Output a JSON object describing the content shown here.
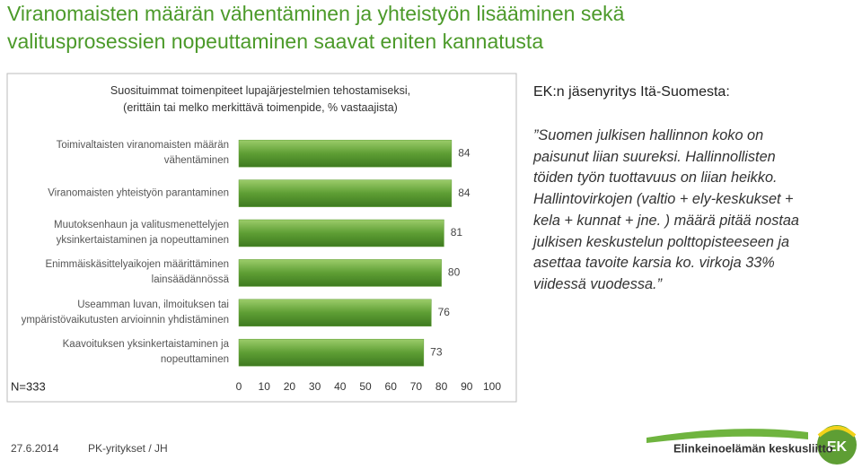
{
  "header": {
    "title": "Viranomaisten määrän vähentäminen ja yhteistyön lisääminen sekä\nvalitusprosessien nopeuttaminen saavat eniten kannatusta"
  },
  "chart_data": {
    "type": "bar",
    "orientation": "horizontal",
    "title": "Suosituimmat toimenpiteet lupajärjestelmien tehostamiseksi,\n(erittäin tai melko merkittävä toimenpide, % vastaajista)",
    "categories": [
      "Toimivaltaisten viranomaisten määrän\nvähentäminen",
      "Viranomaisten yhteistyön parantaminen",
      "Muutoksenhaun ja valitusmenettelyjen\nyksinkertaistaminen ja nopeuttaminen",
      "Enimmäiskäsittelyaikojen määrittäminen\nlainsäädännössä",
      "Useamman luvan, ilmoituksen tai\nympäristövaikutusten arvioinnin yhdistäminen",
      "Kaavoituksen yksinkertaistaminen ja\nnopeuttaminen"
    ],
    "values": [
      84,
      84,
      81,
      80,
      76,
      73
    ],
    "color": "#5e9e34",
    "xlim": [
      0,
      100
    ],
    "xticks": [
      0,
      10,
      20,
      30,
      40,
      50,
      60,
      70,
      80,
      90,
      100
    ],
    "note": "N=333"
  },
  "quote": {
    "heading": "EK:n jäsenyritys Itä-Suomesta:",
    "text": "”Suomen julkisen hallinnon koko on\npaisunut liian suureksi. Hallinnollisten\ntöiden työn tuottavuus on liian heikko.\nHallintovirkojen (valtio + ely-keskukset +\nkela + kunnat + jne. ) määrä pitää nostaa\njulkisen keskustelun polttopisteeseen ja\nasettaa tavoite karsia ko. virkoja 33%\nviidessä vuodessa.”"
  },
  "footer": {
    "date": "27.6.2014",
    "author": "PK-yritykset / JH",
    "org": "Elinkeinoelämän keskusliitto",
    "logo": "EK"
  }
}
